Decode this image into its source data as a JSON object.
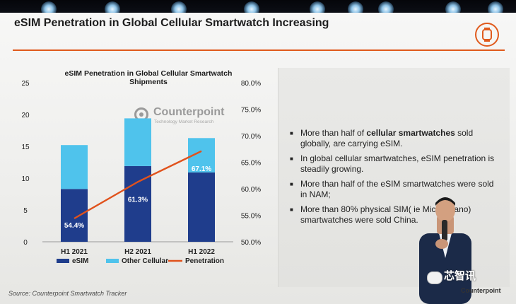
{
  "slide": {
    "title": "eSIM Penetration in Global Cellular Smartwatch Increasing",
    "source": "Source: Counterpoint Smartwatch Tracker",
    "logo_name": "Counterpoint",
    "logo_tagline": "Technology Market Research",
    "corner_brand": "Counterpoint",
    "watermark": "芯智讯",
    "icon": "smartwatch-icon"
  },
  "bullets": [
    {
      "pre": "More than half of ",
      "bold": "cellular smartwatches",
      "post": " sold globally, are carrying eSIM."
    },
    {
      "pre": "In global cellular smartwatches, eSIM penetration is steadily growing.",
      "bold": "",
      "post": ""
    },
    {
      "pre": "More than half of the eSIM smartwatches were sold in NAM;",
      "bold": "",
      "post": ""
    },
    {
      "pre": "More than 80% physical SIM( i",
      "bold": "",
      "post": "e Micro, Nano) smartwatches were sold China."
    }
  ],
  "chart_data": {
    "type": "bar",
    "title": "eSIM Penetration in Global Cellular Smartwatch Shipments",
    "categories": [
      "H1 2021",
      "H2 2021",
      "H1 2022"
    ],
    "stacked": true,
    "series": [
      {
        "name": "eSIM",
        "values": [
          8.3,
          11.9,
          10.9
        ],
        "color": "#1f3d8c"
      },
      {
        "name": "Other Cellular",
        "values": [
          6.9,
          7.5,
          5.4
        ],
        "color": "#4fc3ec"
      }
    ],
    "line_series": {
      "name": "Penetration",
      "values": [
        54.4,
        61.3,
        67.1
      ],
      "labels": [
        "54.4%",
        "61.3%",
        "67.1%"
      ],
      "color": "#e0521c",
      "axis": "right"
    },
    "y_left": {
      "min": 0,
      "max": 25,
      "ticks": [
        "0",
        "5",
        "10",
        "15",
        "20",
        "25"
      ]
    },
    "y_right": {
      "min": 50,
      "max": 80,
      "ticks": [
        "50.0%",
        "55.0%",
        "60.0%",
        "65.0%",
        "70.0%",
        "75.0%",
        "80.0%"
      ]
    },
    "legend": [
      "eSIM",
      "Other Cellular",
      "Penetration"
    ],
    "legend_position": "bottom"
  }
}
